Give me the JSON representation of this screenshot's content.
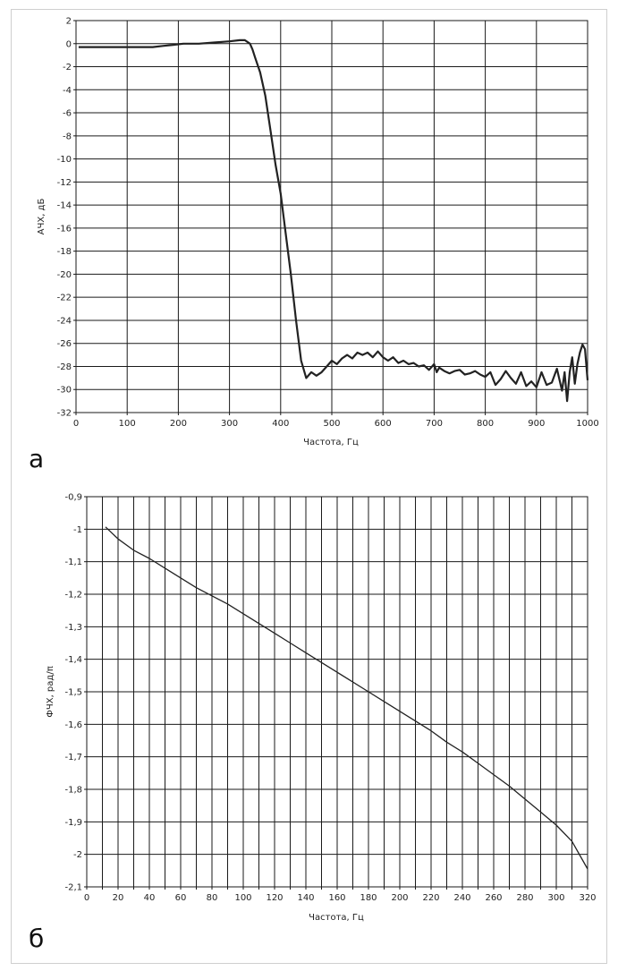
{
  "chart_data": [
    {
      "type": "line",
      "panel_label": "а",
      "xlabel": "Частота, Гц",
      "ylabel": "АЧХ, дБ",
      "xlim": [
        0,
        1000
      ],
      "ylim": [
        -32,
        2
      ],
      "x_ticks": [
        0,
        100,
        200,
        300,
        400,
        500,
        600,
        700,
        800,
        900,
        1000
      ],
      "y_ticks": [
        2,
        0,
        -2,
        -4,
        -6,
        -8,
        -10,
        -12,
        -14,
        -16,
        -18,
        -20,
        -22,
        -24,
        -26,
        -28,
        -30,
        -32
      ],
      "grid": true,
      "series": [
        {
          "color": "#222222",
          "x": [
            5,
            50,
            100,
            150,
            170,
            190,
            210,
            240,
            270,
            300,
            320,
            330,
            340,
            345,
            350,
            360,
            370,
            380,
            390,
            400,
            410,
            420,
            430,
            440,
            450,
            460,
            470,
            480,
            490,
            500,
            510,
            520,
            530,
            540,
            550,
            560,
            570,
            580,
            590,
            600,
            610,
            620,
            630,
            640,
            650,
            660,
            670,
            680,
            690,
            700,
            705,
            710,
            720,
            730,
            740,
            750,
            760,
            770,
            780,
            790,
            800,
            810,
            820,
            830,
            840,
            850,
            860,
            870,
            880,
            890,
            900,
            910,
            920,
            930,
            940,
            950,
            955,
            960,
            965,
            970,
            975,
            980,
            985,
            990,
            995,
            1000
          ],
          "y": [
            -0.3,
            -0.3,
            -0.3,
            -0.3,
            -0.2,
            -0.1,
            0,
            0,
            0.1,
            0.2,
            0.3,
            0.3,
            0,
            -0.5,
            -1.2,
            -2.5,
            -4.5,
            -7.5,
            -10.5,
            -13,
            -16.5,
            -20,
            -24,
            -27.5,
            -29,
            -28.5,
            -28.8,
            -28.5,
            -28,
            -27.5,
            -27.8,
            -27.3,
            -27,
            -27.3,
            -26.8,
            -27,
            -26.8,
            -27.2,
            -26.7,
            -27.2,
            -27.5,
            -27.2,
            -27.7,
            -27.5,
            -27.8,
            -27.7,
            -28,
            -27.9,
            -28.3,
            -27.8,
            -28.5,
            -28.1,
            -28.4,
            -28.6,
            -28.4,
            -28.3,
            -28.7,
            -28.6,
            -28.4,
            -28.7,
            -28.9,
            -28.5,
            -29.6,
            -29.1,
            -28.4,
            -29,
            -29.5,
            -28.5,
            -29.7,
            -29.3,
            -29.8,
            -28.5,
            -29.6,
            -29.4,
            -28.2,
            -30.1,
            -28.5,
            -31,
            -28.5,
            -27.2,
            -29.5,
            -27.8,
            -26.8,
            -26.1,
            -26.5,
            -29.2
          ]
        }
      ]
    },
    {
      "type": "line",
      "panel_label": "б",
      "xlabel": "Частота, Гц",
      "ylabel": "ФЧХ, рад/π",
      "xlim": [
        0,
        320
      ],
      "ylim": [
        -2.1,
        -0.9
      ],
      "x_ticks": [
        0,
        10,
        20,
        30,
        40,
        50,
        60,
        70,
        80,
        90,
        100,
        110,
        120,
        130,
        140,
        150,
        160,
        170,
        180,
        190,
        200,
        210,
        220,
        230,
        240,
        250,
        260,
        270,
        280,
        290,
        300,
        310,
        320
      ],
      "x_tick_labels": [
        "0",
        "",
        "20",
        "",
        "40",
        "",
        "60",
        "",
        "80",
        "",
        "100",
        "",
        "120",
        "",
        "140",
        "",
        "160",
        "",
        "180",
        "",
        "200",
        "",
        "220",
        "",
        "240",
        "",
        "260",
        "",
        "280",
        "",
        "300",
        "",
        "320"
      ],
      "y_ticks": [
        -0.9,
        -1,
        -1.1,
        -1.2,
        -1.3,
        -1.4,
        -1.5,
        -1.6,
        -1.7,
        -1.8,
        -1.9,
        -2,
        -2.1
      ],
      "y_tick_labels": [
        "-0,9",
        "-1",
        "-1,1",
        "-1,2",
        "-1,3",
        "-1,4",
        "-1,5",
        "-1,6",
        "-1,7",
        "-1,8",
        "-1,9",
        "-2",
        "-2,1"
      ],
      "grid": true,
      "series": [
        {
          "color": "#222222",
          "x": [
            12,
            20,
            30,
            40,
            50,
            60,
            70,
            80,
            90,
            100,
            110,
            120,
            130,
            140,
            150,
            160,
            170,
            180,
            190,
            200,
            210,
            220,
            230,
            240,
            250,
            260,
            270,
            280,
            290,
            300,
            310,
            320
          ],
          "y": [
            -0.993,
            -1.03,
            -1.065,
            -1.09,
            -1.12,
            -1.15,
            -1.18,
            -1.205,
            -1.23,
            -1.26,
            -1.29,
            -1.32,
            -1.35,
            -1.38,
            -1.41,
            -1.44,
            -1.47,
            -1.5,
            -1.53,
            -1.56,
            -1.59,
            -1.62,
            -1.655,
            -1.685,
            -1.72,
            -1.755,
            -1.79,
            -1.83,
            -1.87,
            -1.91,
            -1.96,
            -2.045
          ]
        }
      ]
    }
  ]
}
